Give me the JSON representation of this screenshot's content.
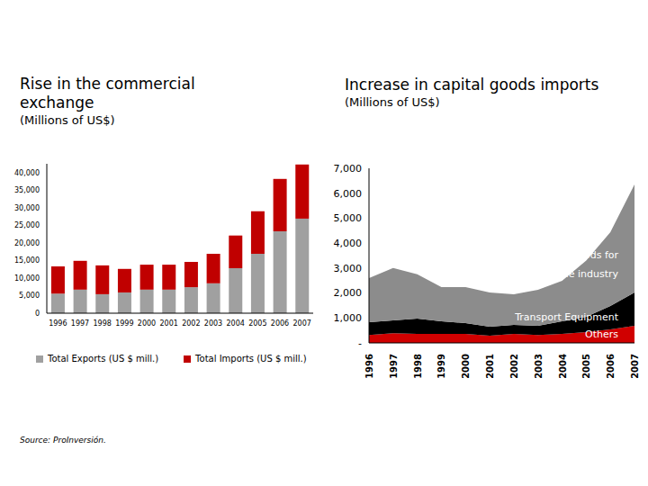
{
  "chart_data": [
    {
      "type": "bar",
      "title": "Rise in the commercial exchange",
      "subtitle": "(Millions of US$)",
      "categories": [
        "1996",
        "1997",
        "1998",
        "1999",
        "2000",
        "2001",
        "2002",
        "2003",
        "2004",
        "2005",
        "2006",
        "2007"
      ],
      "series": [
        {
          "name": "Total Exports (US $ mill.)",
          "color": "#a0a0a0",
          "values": [
            5600,
            6700,
            5400,
            5900,
            6700,
            6700,
            7400,
            8500,
            12800,
            16900,
            23300,
            26900
          ]
        },
        {
          "name": "Total Imports (US $ mill.)",
          "color": "#c00000",
          "values": [
            7700,
            8200,
            8200,
            6700,
            7100,
            7100,
            7200,
            8400,
            9300,
            12100,
            14900,
            15400
          ]
        }
      ],
      "stacked": true,
      "legend": "bottom",
      "grid": false,
      "ylim": [
        0,
        42500
      ],
      "yticks": [
        0,
        {
          "value": 5000,
          "label": "5,000"
        },
        {
          "value": 10000,
          "label": "10,000"
        },
        {
          "value": 15000,
          "label": "15,000"
        },
        {
          "value": 20000,
          "label": "20,000"
        },
        {
          "value": 25000,
          "label": "25,000"
        },
        {
          "value": 30000,
          "label": "30,000"
        },
        {
          "value": 35000,
          "label": "35,000"
        },
        {
          "value": 40000,
          "label": "40,000"
        }
      ],
      "annotations": [
        "Source: ProInversión."
      ]
    },
    {
      "type": "area",
      "title": "Increase in capital goods imports",
      "subtitle": "(Millions of US$)",
      "categories": [
        "1996",
        "1997",
        "1998",
        "1999",
        "2000",
        "2001",
        "2002",
        "2003",
        "2004",
        "2005",
        "2006",
        "2007"
      ],
      "series": [
        {
          "name": "Others",
          "color": "#d00000",
          "values": [
            320,
            390,
            360,
            360,
            360,
            290,
            360,
            320,
            360,
            430,
            540,
            690
          ]
        },
        {
          "name": "Transport Equipment",
          "color": "#000000",
          "values": [
            510,
            510,
            610,
            510,
            430,
            360,
            360,
            370,
            510,
            620,
            940,
            1330
          ]
        },
        {
          "name": "Capital goods for the industry",
          "color": "#8c8c8c",
          "values": [
            1770,
            2100,
            1780,
            1370,
            1450,
            1370,
            1230,
            1440,
            1620,
            2250,
            2960,
            4330
          ]
        }
      ],
      "stacked": true,
      "grid": false,
      "ylim": [
        0,
        7000
      ],
      "yticks": [
        {
          "value": 0,
          "label": "-"
        },
        {
          "value": 1000,
          "label": "1,000"
        },
        {
          "value": 2000,
          "label": "2,000"
        },
        {
          "value": 3000,
          "label": "3,000"
        },
        {
          "value": 4000,
          "label": "4,000"
        },
        {
          "value": 5000,
          "label": "5,000"
        },
        {
          "value": 6000,
          "label": "6,000"
        },
        {
          "value": 7000,
          "label": "7,000"
        }
      ]
    }
  ]
}
